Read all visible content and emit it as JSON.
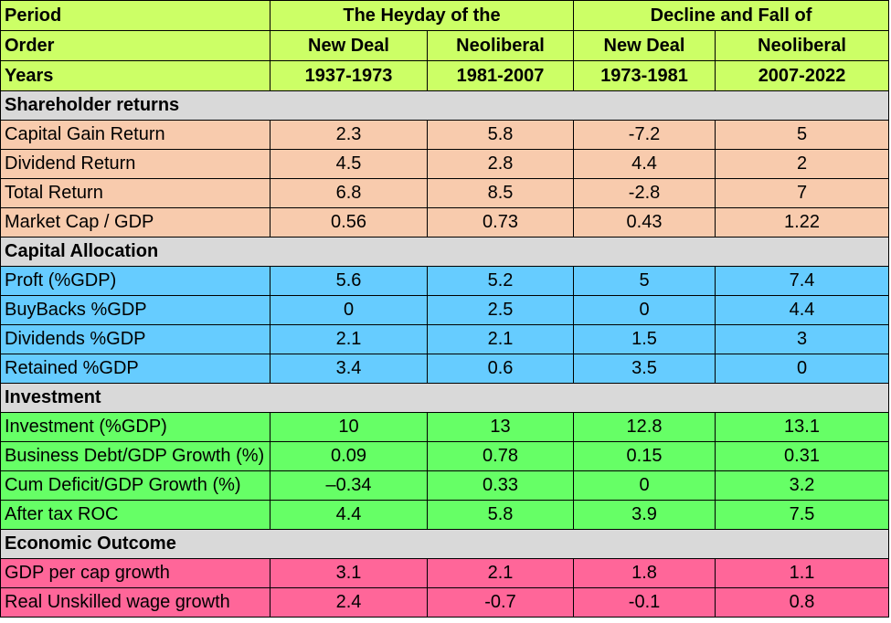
{
  "header": {
    "row1": {
      "label": "Period",
      "group1": "The Heyday of the",
      "group2": "Decline and Fall of"
    },
    "row2": {
      "label": "Order",
      "cols": [
        "New Deal",
        "Neoliberal",
        "New Deal",
        "Neoliberal"
      ]
    },
    "row3": {
      "label": "Years",
      "cols": [
        "1937-1973",
        "1981-2007",
        "1973-1981",
        "2007-2022"
      ]
    }
  },
  "sections": [
    {
      "title": "Shareholder returns",
      "color": "#f8cbad",
      "rows": [
        {
          "label": "Capital Gain Return",
          "values": [
            "2.3",
            "5.8",
            "-7.2",
            "5"
          ]
        },
        {
          "label": "Dividend Return",
          "values": [
            "4.5",
            "2.8",
            "4.4",
            "2"
          ]
        },
        {
          "label": "Total Return",
          "values": [
            "6.8",
            "8.5",
            "-2.8",
            "7"
          ]
        },
        {
          "label": "Market Cap / GDP",
          "values": [
            "0.56",
            "0.73",
            "0.43",
            "1.22"
          ]
        }
      ]
    },
    {
      "title": "Capital Allocation",
      "color": "#66ccff",
      "rows": [
        {
          "label": "Proft (%GDP)",
          "values": [
            "5.6",
            "5.2",
            "5",
            "7.4"
          ]
        },
        {
          "label": "BuyBacks %GDP",
          "values": [
            "0",
            "2.5",
            "0",
            "4.4"
          ]
        },
        {
          "label": "Dividends %GDP",
          "values": [
            "2.1",
            "2.1",
            "1.5",
            "3"
          ]
        },
        {
          "label": "Retained %GDP",
          "values": [
            "3.4",
            "0.6",
            "3.5",
            "0"
          ]
        }
      ]
    },
    {
      "title": "Investment",
      "color": "#66ff66",
      "rows": [
        {
          "label": "Investment (%GDP)",
          "values": [
            "10",
            "13",
            "12.8",
            "13.1"
          ]
        },
        {
          "label": "Business Debt/GDP Growth (%)",
          "values": [
            "0.09",
            "0.78",
            "0.15",
            "0.31"
          ]
        },
        {
          "label": "Cum Deficit/GDP Growth (%)",
          "values": [
            "–0.34",
            "0.33",
            "0",
            "3.2"
          ]
        },
        {
          "label": "After tax ROC",
          "values": [
            "4.4",
            "5.8",
            "3.9",
            "7.5"
          ]
        }
      ]
    },
    {
      "title": "Economic Outcome",
      "color": "#ff6699",
      "rows": [
        {
          "label": "GDP per cap growth",
          "values": [
            "3.1",
            "2.1",
            "1.8",
            "1.1"
          ]
        },
        {
          "label": "Real Unskilled wage growth",
          "values": [
            "2.4",
            "-0.7",
            "-0.1",
            "0.8"
          ]
        }
      ]
    }
  ]
}
